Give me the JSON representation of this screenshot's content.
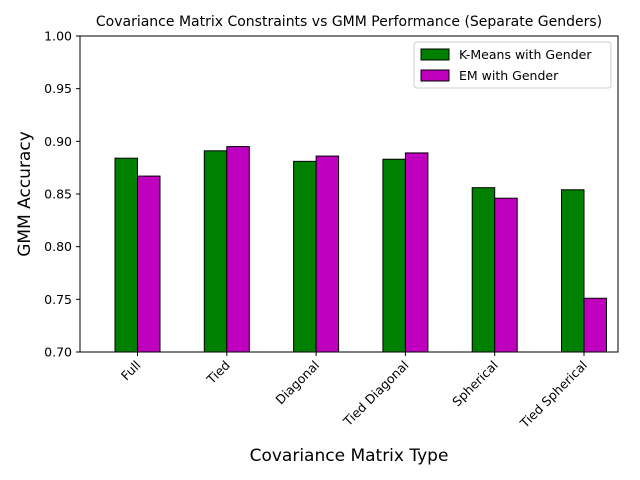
{
  "chart_data": {
    "type": "bar",
    "title": "Covariance Matrix Constraints vs GMM Performance (Separate Genders)",
    "xlabel": "Covariance Matrix Type",
    "ylabel": "GMM Accuracy",
    "categories": [
      "Full",
      "Tied",
      "Diagonal",
      "Tied Diagonal",
      "Spherical",
      "Tied Spherical"
    ],
    "series": [
      {
        "name": "K-Means with Gender",
        "color": "#008000",
        "values": [
          0.884,
          0.891,
          0.881,
          0.883,
          0.856,
          0.854
        ]
      },
      {
        "name": "EM with Gender",
        "color": "#bf00bf",
        "values": [
          0.867,
          0.895,
          0.886,
          0.889,
          0.846,
          0.751
        ]
      }
    ],
    "ylim": [
      0.7,
      1.0
    ],
    "yticks": [
      "0.70",
      "0.75",
      "0.80",
      "0.85",
      "0.90",
      "0.95",
      "1.00"
    ],
    "legend_position": "top-right",
    "grid": false,
    "xtick_rotation": "45°"
  }
}
